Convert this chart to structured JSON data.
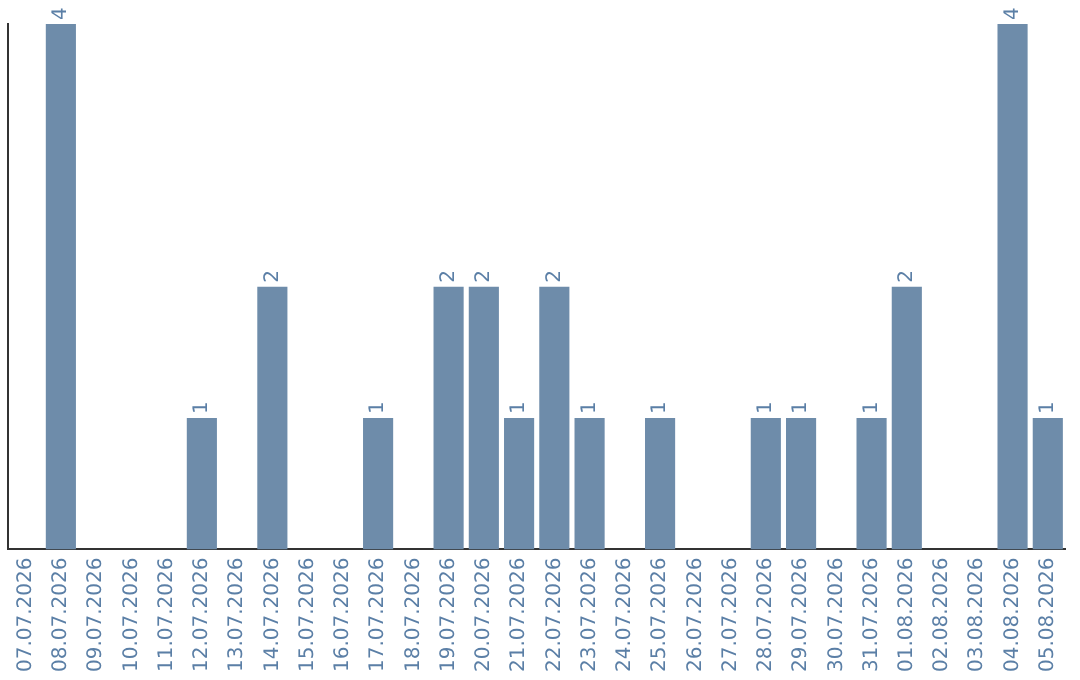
{
  "chart_data": {
    "type": "bar",
    "categories": [
      "07.07.2026",
      "08.07.2026",
      "09.07.2026",
      "10.07.2026",
      "11.07.2026",
      "12.07.2026",
      "13.07.2026",
      "14.07.2026",
      "15.07.2026",
      "16.07.2026",
      "17.07.2026",
      "18.07.2026",
      "19.07.2026",
      "20.07.2026",
      "21.07.2026",
      "22.07.2026",
      "23.07.2026",
      "24.07.2026",
      "25.07.2026",
      "26.07.2026",
      "27.07.2026",
      "28.07.2026",
      "29.07.2026",
      "30.07.2026",
      "31.07.2026",
      "01.08.2026",
      "02.08.2026",
      "03.08.2026",
      "04.08.2026",
      "05.08.2026"
    ],
    "values": [
      0,
      4,
      0,
      0,
      0,
      1,
      0,
      2,
      0,
      0,
      1,
      0,
      2,
      2,
      1,
      2,
      1,
      0,
      1,
      0,
      0,
      1,
      1,
      0,
      1,
      2,
      0,
      0,
      4,
      1
    ],
    "value_labels": [
      null,
      "4",
      null,
      null,
      null,
      "1",
      null,
      "2",
      null,
      null,
      "1",
      null,
      "2",
      "2",
      "1",
      "2",
      "1",
      null,
      "1",
      null,
      null,
      "1",
      "1",
      null,
      "1",
      "2",
      null,
      null,
      "4",
      "1"
    ],
    "color": "#6e8caa",
    "tick_labels": "x",
    "grid": false,
    "legend": false
  }
}
